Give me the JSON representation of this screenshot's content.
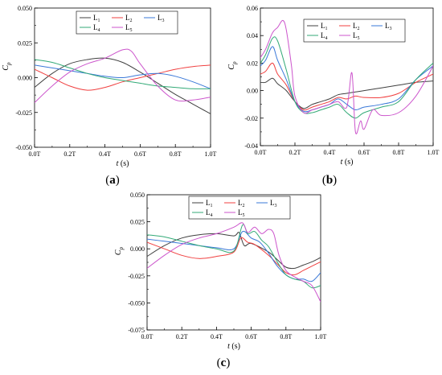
{
  "panel_labels": [
    "(a)",
    "(b)",
    "(c)"
  ],
  "colors": {
    "L1": "#404040",
    "L2": "#f04040",
    "L3": "#3a78d8",
    "L4": "#33aa77",
    "L5": "#cc55cc"
  },
  "chart_data": [
    {
      "type": "line",
      "panel": "(a)",
      "xlabel": "t (s)",
      "ylabel": "Cp",
      "xlim": [
        0,
        1
      ],
      "ylim": [
        -0.05,
        0.05
      ],
      "xticks": [
        0,
        0.2,
        0.4,
        0.6,
        0.8,
        1.0
      ],
      "xtick_labels": [
        "0.0T",
        "0.2T",
        "0.4T",
        "0.6T",
        "0.8T",
        "1.0T"
      ],
      "yticks": [
        -0.05,
        -0.025,
        0,
        0.025,
        0.05
      ],
      "ytick_labels": [
        "-0.050",
        "-0.025",
        "0.000",
        "0.025",
        "0.050"
      ],
      "legend": {
        "position": "top-center",
        "columns": 3
      },
      "series": [
        {
          "name": "L1",
          "label": "L",
          "sub": "1",
          "color": "#404040",
          "x": [
            0,
            0.1,
            0.2,
            0.3,
            0.4,
            0.5,
            0.6,
            0.7,
            0.8,
            0.9,
            1.0
          ],
          "y": [
            -0.007,
            0.003,
            0.01,
            0.013,
            0.014,
            0.011,
            0.004,
            -0.004,
            -0.012,
            -0.019,
            -0.026
          ]
        },
        {
          "name": "L2",
          "label": "L",
          "sub": "2",
          "color": "#f04040",
          "x": [
            0,
            0.1,
            0.2,
            0.3,
            0.4,
            0.5,
            0.6,
            0.7,
            0.8,
            0.9,
            1.0
          ],
          "y": [
            0.006,
            0.0,
            -0.006,
            -0.009,
            -0.007,
            -0.003,
            0.0,
            0.003,
            0.006,
            0.008,
            0.009
          ]
        },
        {
          "name": "L3",
          "label": "L",
          "sub": "3",
          "color": "#3a78d8",
          "x": [
            0,
            0.1,
            0.2,
            0.3,
            0.4,
            0.5,
            0.6,
            0.7,
            0.8,
            0.9,
            1.0
          ],
          "y": [
            0.009,
            0.007,
            0.005,
            0.003,
            0.001,
            0.0,
            0.002,
            0.003,
            0.001,
            -0.003,
            -0.008
          ]
        },
        {
          "name": "L4",
          "label": "L",
          "sub": "4",
          "color": "#33aa77",
          "x": [
            0,
            0.1,
            0.2,
            0.3,
            0.4,
            0.5,
            0.6,
            0.7,
            0.8,
            0.9,
            1.0
          ],
          "y": [
            0.013,
            0.011,
            0.007,
            0.003,
            0.0,
            -0.002,
            -0.004,
            -0.006,
            -0.007,
            -0.008,
            -0.008
          ]
        },
        {
          "name": "L5",
          "label": "L",
          "sub": "5",
          "color": "#cc55cc",
          "x": [
            0,
            0.1,
            0.2,
            0.3,
            0.4,
            0.5,
            0.55,
            0.6,
            0.7,
            0.8,
            0.9,
            1.0
          ],
          "y": [
            -0.018,
            -0.006,
            0.004,
            0.01,
            0.014,
            0.02,
            0.019,
            0.01,
            -0.006,
            -0.016,
            -0.016,
            -0.014
          ]
        }
      ]
    },
    {
      "type": "line",
      "panel": "(b)",
      "xlabel": "t (s)",
      "ylabel": "Cp",
      "xlim": [
        0,
        1
      ],
      "ylim": [
        -0.04,
        0.06
      ],
      "xticks": [
        0,
        0.2,
        0.4,
        0.6,
        0.8,
        1.0
      ],
      "xtick_labels": [
        "0.0T",
        "0.2T",
        "0.4T",
        "0.6T",
        "0.8T",
        "1.0T"
      ],
      "yticks": [
        -0.04,
        -0.02,
        0,
        0.02,
        0.04,
        0.06
      ],
      "ytick_labels": [
        "-0.04",
        "-0.02",
        "0.00",
        "0.02",
        "0.04",
        "0.06"
      ],
      "legend": {
        "position": "top-right",
        "columns": 3
      },
      "series": [
        {
          "name": "L1",
          "label": "L",
          "sub": "1",
          "color": "#404040",
          "x": [
            0,
            0.03,
            0.07,
            0.1,
            0.15,
            0.2,
            0.25,
            0.3,
            0.35,
            0.4,
            0.45,
            0.5,
            0.55,
            0.6,
            0.7,
            0.8,
            0.9,
            1.0
          ],
          "y": [
            0.006,
            0.006,
            0.009,
            0.005,
            0.0,
            -0.008,
            -0.013,
            -0.01,
            -0.008,
            -0.006,
            -0.003,
            -0.002,
            -0.001,
            0.0,
            0.002,
            0.004,
            0.006,
            0.007
          ]
        },
        {
          "name": "L2",
          "label": "L",
          "sub": "2",
          "color": "#f04040",
          "x": [
            0,
            0.03,
            0.07,
            0.1,
            0.15,
            0.2,
            0.25,
            0.3,
            0.35,
            0.4,
            0.45,
            0.5,
            0.55,
            0.6,
            0.7,
            0.8,
            0.9,
            1.0
          ],
          "y": [
            0.012,
            0.014,
            0.02,
            0.012,
            0.004,
            -0.008,
            -0.014,
            -0.012,
            -0.01,
            -0.008,
            -0.005,
            -0.006,
            -0.004,
            -0.005,
            -0.005,
            -0.002,
            0.006,
            0.012
          ]
        },
        {
          "name": "L3",
          "label": "L",
          "sub": "3",
          "color": "#3a78d8",
          "x": [
            0,
            0.03,
            0.07,
            0.1,
            0.15,
            0.2,
            0.25,
            0.3,
            0.35,
            0.4,
            0.45,
            0.5,
            0.55,
            0.6,
            0.7,
            0.8,
            0.9,
            1.0
          ],
          "y": [
            0.018,
            0.022,
            0.032,
            0.022,
            0.008,
            -0.008,
            -0.015,
            -0.014,
            -0.012,
            -0.01,
            -0.006,
            -0.01,
            -0.014,
            -0.012,
            -0.01,
            -0.006,
            0.008,
            0.018
          ]
        },
        {
          "name": "L4",
          "label": "L",
          "sub": "4",
          "color": "#33aa77",
          "x": [
            0,
            0.03,
            0.07,
            0.1,
            0.15,
            0.2,
            0.25,
            0.3,
            0.35,
            0.4,
            0.45,
            0.5,
            0.55,
            0.6,
            0.7,
            0.8,
            0.9,
            1.0
          ],
          "y": [
            0.02,
            0.026,
            0.038,
            0.036,
            0.015,
            -0.008,
            -0.016,
            -0.016,
            -0.014,
            -0.012,
            -0.01,
            -0.016,
            -0.02,
            -0.016,
            -0.012,
            -0.008,
            0.008,
            0.02
          ]
        },
        {
          "name": "L5",
          "label": "L",
          "sub": "5",
          "color": "#cc55cc",
          "x": [
            0,
            0.03,
            0.07,
            0.1,
            0.13,
            0.15,
            0.18,
            0.2,
            0.25,
            0.3,
            0.35,
            0.4,
            0.45,
            0.5,
            0.53,
            0.55,
            0.58,
            0.6,
            0.65,
            0.7,
            0.8,
            0.9,
            1.0
          ],
          "y": [
            0.024,
            0.03,
            0.042,
            0.046,
            0.051,
            0.044,
            0.018,
            -0.004,
            -0.016,
            -0.014,
            -0.012,
            -0.01,
            -0.008,
            -0.012,
            0.013,
            -0.03,
            -0.022,
            -0.028,
            -0.014,
            -0.018,
            -0.016,
            -0.004,
            0.018
          ]
        }
      ]
    },
    {
      "type": "line",
      "panel": "(c)",
      "xlabel": "t (s)",
      "ylabel": "Cp",
      "xlim": [
        0,
        1
      ],
      "ylim": [
        -0.075,
        0.05
      ],
      "xticks": [
        0,
        0.2,
        0.4,
        0.6,
        0.8,
        1.0
      ],
      "xtick_labels": [
        "0.0T",
        "0.2T",
        "0.4T",
        "0.6T",
        "0.8T",
        "1.0T"
      ],
      "yticks": [
        -0.075,
        -0.05,
        -0.025,
        0,
        0.025,
        0.05
      ],
      "ytick_labels": [
        "-0.075",
        "-0.050",
        "-0.025",
        "0.000",
        "0.025",
        "0.050"
      ],
      "legend": {
        "position": "top-center",
        "columns": 3
      },
      "series": [
        {
          "name": "L1",
          "label": "L",
          "sub": "1",
          "color": "#404040",
          "x": [
            0,
            0.1,
            0.2,
            0.3,
            0.4,
            0.5,
            0.53,
            0.56,
            0.6,
            0.7,
            0.75,
            0.8,
            0.85,
            0.9,
            0.95,
            1.0
          ],
          "y": [
            -0.007,
            0.003,
            0.01,
            0.013,
            0.014,
            0.012,
            0.015,
            0.003,
            0.005,
            -0.003,
            -0.01,
            -0.017,
            -0.018,
            -0.015,
            -0.012,
            -0.008
          ]
        },
        {
          "name": "L2",
          "label": "L",
          "sub": "2",
          "color": "#f04040",
          "x": [
            0,
            0.1,
            0.2,
            0.3,
            0.4,
            0.5,
            0.54,
            0.58,
            0.62,
            0.7,
            0.75,
            0.8,
            0.85,
            0.9,
            0.95,
            1.0
          ],
          "y": [
            0.006,
            0.0,
            -0.006,
            -0.009,
            -0.007,
            -0.003,
            0.01,
            0.006,
            0.004,
            -0.006,
            -0.014,
            -0.022,
            -0.024,
            -0.02,
            -0.016,
            -0.012
          ]
        },
        {
          "name": "L3",
          "label": "L",
          "sub": "3",
          "color": "#3a78d8",
          "x": [
            0,
            0.1,
            0.2,
            0.3,
            0.4,
            0.5,
            0.55,
            0.6,
            0.65,
            0.7,
            0.75,
            0.8,
            0.85,
            0.9,
            0.95,
            1.0
          ],
          "y": [
            0.009,
            0.007,
            0.005,
            0.003,
            0.001,
            0.0,
            0.016,
            0.01,
            0.006,
            -0.004,
            -0.016,
            -0.024,
            -0.028,
            -0.028,
            -0.03,
            -0.022
          ]
        },
        {
          "name": "L4",
          "label": "L",
          "sub": "4",
          "color": "#33aa77",
          "x": [
            0,
            0.1,
            0.2,
            0.3,
            0.4,
            0.5,
            0.55,
            0.58,
            0.62,
            0.66,
            0.7,
            0.75,
            0.8,
            0.85,
            0.9,
            0.95,
            1.0
          ],
          "y": [
            0.013,
            0.011,
            0.007,
            0.003,
            0.0,
            -0.002,
            0.022,
            0.014,
            0.016,
            0.008,
            0.002,
            -0.012,
            -0.024,
            -0.028,
            -0.03,
            -0.036,
            -0.034
          ]
        },
        {
          "name": "L5",
          "label": "L",
          "sub": "5",
          "color": "#cc55cc",
          "x": [
            0,
            0.1,
            0.2,
            0.3,
            0.4,
            0.5,
            0.55,
            0.58,
            0.62,
            0.66,
            0.7,
            0.73,
            0.76,
            0.8,
            0.85,
            0.9,
            0.95,
            1.0
          ],
          "y": [
            -0.018,
            -0.006,
            0.004,
            0.01,
            0.014,
            0.02,
            0.024,
            0.015,
            0.02,
            0.014,
            0.018,
            0.014,
            -0.006,
            -0.02,
            -0.026,
            -0.03,
            -0.034,
            -0.049
          ]
        }
      ]
    }
  ]
}
